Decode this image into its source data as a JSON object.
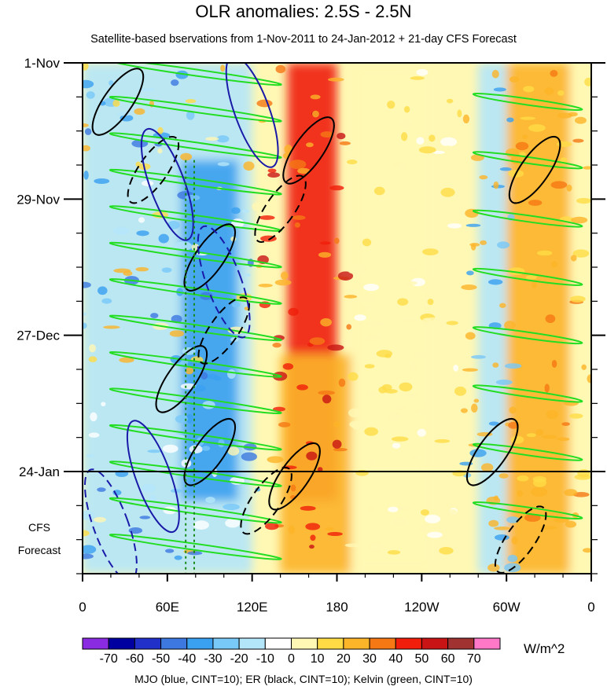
{
  "chart_data": {
    "type": "heatmap",
    "title": "OLR anomalies: 2.5S - 2.5N",
    "subtitle": "Satellite-based bservations from 1-Nov-2011 to 24-Jan-2012 + 21-day CFS Forecast",
    "x_ticks": [
      "0",
      "60E",
      "120E",
      "180",
      "120W",
      "60W",
      "0"
    ],
    "x_tick_values": [
      0,
      60,
      120,
      180,
      240,
      300,
      360
    ],
    "xlim": [
      0,
      360
    ],
    "y_ticks": [
      "1-Nov",
      "29-Nov",
      "27-Dec",
      "24-Jan"
    ],
    "y_tick_days": [
      0,
      28,
      56,
      84
    ],
    "ylim_days": [
      0,
      105
    ],
    "observation_end_day": 84,
    "forecast_label": [
      "CFS",
      "Forecast"
    ],
    "colorbar": {
      "unit": "W/m^2",
      "labels": [
        "-70",
        "-60",
        "-50",
        "-40",
        "-30",
        "-20",
        "-10",
        "0",
        "10",
        "20",
        "30",
        "40",
        "50",
        "60",
        "70"
      ],
      "colors": [
        "#8a2be2",
        "#0000a0",
        "#2030c8",
        "#3c78e0",
        "#3aa0f0",
        "#78c8f8",
        "#b4e6fa",
        "#ffffff",
        "#fff8b4",
        "#ffdc46",
        "#fcb428",
        "#f57814",
        "#f01e0a",
        "#c81414",
        "#a03232",
        "#ff78c8"
      ]
    },
    "footnote": "MJO (blue, CINT=10); ER (black, CINT=10); Kelvin (green, CINT=10)",
    "contour_colors": {
      "mjo": "#1a1aa8",
      "er": "#000000",
      "kelvin": "#22dd22",
      "forecast_lines": "#1a8a1a"
    },
    "anomaly_bands": [
      {
        "lon_start": 0,
        "lon_end": 120,
        "day_start": 0,
        "day_end": 105,
        "value": -20
      },
      {
        "lon_start": 70,
        "lon_end": 110,
        "day_start": 20,
        "day_end": 90,
        "value": -40
      },
      {
        "lon_start": 145,
        "lon_end": 180,
        "day_start": 0,
        "day_end": 90,
        "value": 40
      },
      {
        "lon_start": 140,
        "lon_end": 190,
        "day_start": 60,
        "day_end": 105,
        "value": 25
      },
      {
        "lon_start": 190,
        "lon_end": 250,
        "day_start": 0,
        "day_end": 105,
        "value": 5
      },
      {
        "lon_start": 280,
        "lon_end": 300,
        "day_start": 0,
        "day_end": 105,
        "value": -20
      },
      {
        "lon_start": 300,
        "lon_end": 345,
        "day_start": 0,
        "day_end": 105,
        "value": 20
      },
      {
        "lon_start": 345,
        "lon_end": 360,
        "day_start": 0,
        "day_end": 105,
        "value": 0
      }
    ]
  }
}
